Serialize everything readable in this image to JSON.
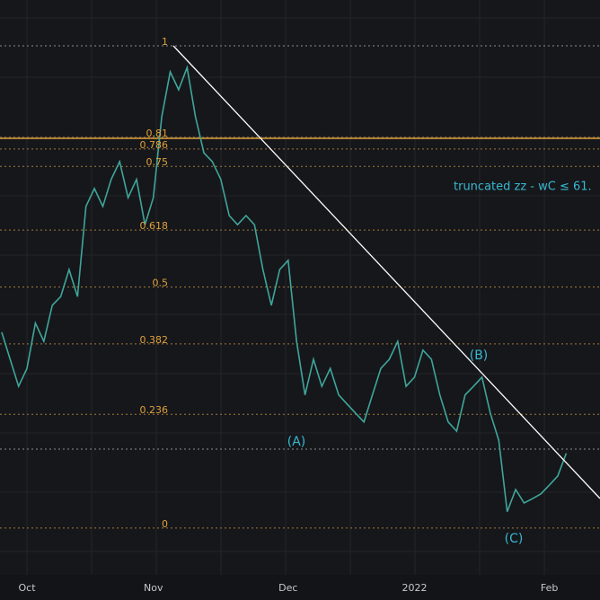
{
  "chart_data": {
    "type": "line",
    "categories": [
      null,
      null,
      null,
      "Oct",
      null,
      null,
      null,
      null,
      null,
      null,
      null,
      null,
      null,
      null,
      null,
      null,
      null,
      null,
      "Nov",
      null,
      null,
      null,
      null,
      null,
      null,
      null,
      null,
      null,
      null,
      null,
      null,
      null,
      null,
      null,
      "Dec",
      null,
      null,
      null,
      null,
      null,
      null,
      null,
      null,
      null,
      null,
      null,
      null,
      null,
      null,
      "2022",
      null,
      null,
      null,
      null,
      null,
      null,
      null,
      null,
      null,
      null,
      null,
      null,
      null,
      null,
      null,
      "Feb",
      null,
      null
    ],
    "series": [
      {
        "name": null,
        "color": "#3fa69a",
        "values": [
          0.406,
          0.35,
          0.294,
          0.331,
          0.425,
          0.387,
          0.462,
          0.48,
          0.536,
          0.48,
          0.667,
          0.704,
          0.667,
          0.723,
          0.76,
          0.685,
          0.723,
          0.629,
          0.685,
          0.853,
          0.946,
          0.909,
          0.955,
          0.853,
          0.778,
          0.76,
          0.723,
          0.648,
          0.629,
          0.648,
          0.629,
          0.536,
          0.462,
          0.536,
          0.555,
          0.387,
          0.276,
          0.35,
          0.294,
          0.331,
          0.276,
          0.257,
          0.238,
          0.22,
          0.276,
          0.331,
          0.35,
          0.387,
          0.294,
          0.313,
          0.369,
          0.35,
          0.276,
          0.22,
          0.201,
          0.276,
          0.294,
          0.313,
          0.238,
          0.182,
          0.034,
          0.08,
          0.052,
          0.061,
          0.071,
          0.089,
          0.108,
          0.155
        ]
      }
    ],
    "ylim": [
      -0.097,
      1.095
    ],
    "yticks": [
      1,
      0.81,
      0.786,
      0.75,
      0.618,
      0.5,
      0.382,
      0.236,
      0
    ],
    "annotations": [
      "(A)",
      "(B)",
      "(C)",
      "truncated zz - wC ≤ 61."
    ],
    "grid": true
  }
}
